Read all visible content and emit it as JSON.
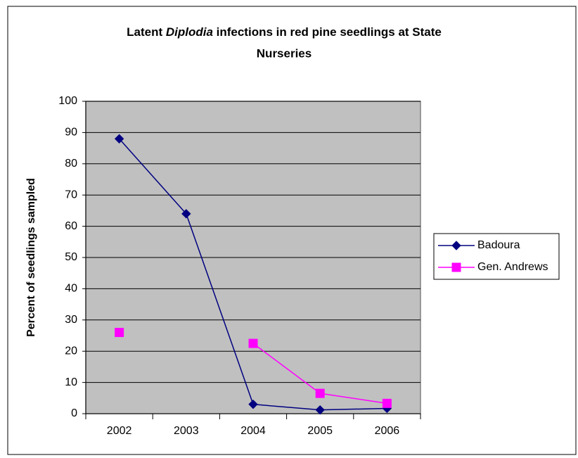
{
  "chart_data": {
    "type": "line",
    "title": {
      "line1": [
        "Latent ",
        "Diplodia",
        " infections in red pine seedlings at State"
      ],
      "line2": "Nurseries"
    },
    "y_label": "Percent of seedlings sampled",
    "categories": [
      "2002",
      "2003",
      "2004",
      "2005",
      "2006"
    ],
    "series": [
      {
        "name": "Badoura",
        "color": "#000080",
        "marker": "diamond",
        "values": [
          88,
          64,
          3,
          1.2,
          1.7
        ]
      },
      {
        "name": "Gen. Andrews",
        "color": "#ff00ff",
        "marker": "square",
        "values": [
          26,
          null,
          22.5,
          6.5,
          3.3
        ]
      }
    ],
    "ylim": [
      0,
      100
    ],
    "yticks": [
      0,
      10,
      20,
      30,
      40,
      50,
      60,
      70,
      80,
      90,
      100
    ],
    "grid": true,
    "legend": "right",
    "plot_background": "#c0c0c0"
  }
}
